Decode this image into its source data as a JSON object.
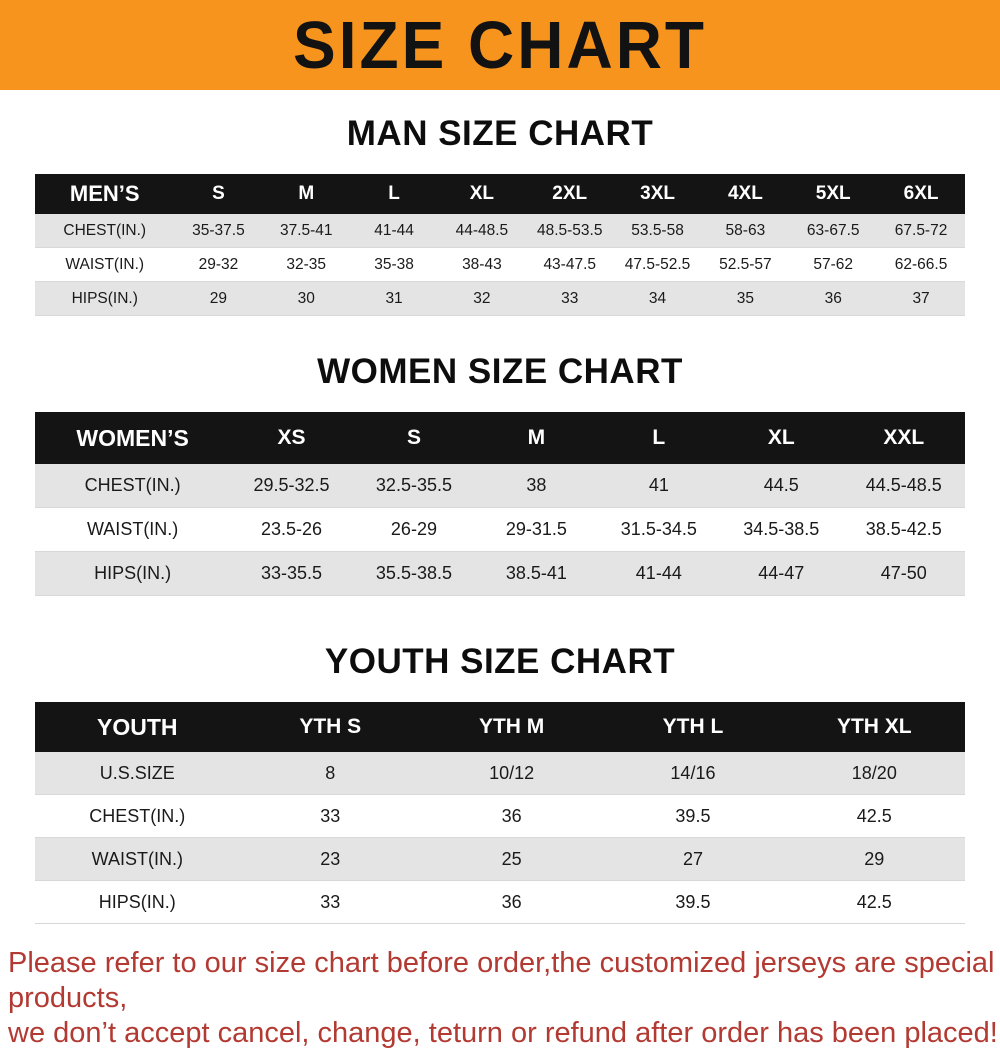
{
  "banner": {
    "title": "SIZE CHART",
    "bg_color": "#f7941e",
    "text_color": "#121212"
  },
  "sections": [
    {
      "heading": "MAN SIZE CHART",
      "table": {
        "header": [
          "MEN’S",
          "S",
          "M",
          "L",
          "XL",
          "2XL",
          "3XL",
          "4XL",
          "5XL",
          "6XL"
        ],
        "rows": [
          [
            "CHEST(IN.)",
            "35-37.5",
            "37.5-41",
            "41-44",
            "44-48.5",
            "48.5-53.5",
            "53.5-58",
            "58-63",
            "63-67.5",
            "67.5-72"
          ],
          [
            "WAIST(IN.)",
            "29-32",
            "32-35",
            "35-38",
            "38-43",
            "43-47.5",
            "47.5-52.5",
            "52.5-57",
            "57-62",
            "62-66.5"
          ],
          [
            "HIPS(IN.)",
            "29",
            "30",
            "31",
            "32",
            "33",
            "34",
            "35",
            "36",
            "37"
          ]
        ]
      }
    },
    {
      "heading": "WOMEN SIZE CHART",
      "table": {
        "header": [
          "WOMEN’S",
          "XS",
          "S",
          "M",
          "L",
          "XL",
          "XXL"
        ],
        "rows": [
          [
            "CHEST(IN.)",
            "29.5-32.5",
            "32.5-35.5",
            "38",
            "41",
            "44.5",
            "44.5-48.5"
          ],
          [
            "WAIST(IN.)",
            "23.5-26",
            "26-29",
            "29-31.5",
            "31.5-34.5",
            "34.5-38.5",
            "38.5-42.5"
          ],
          [
            "HIPS(IN.)",
            "33-35.5",
            "35.5-38.5",
            "38.5-41",
            "41-44",
            "44-47",
            "47-50"
          ]
        ]
      }
    },
    {
      "heading": "YOUTH SIZE CHART",
      "table": {
        "header": [
          "YOUTH",
          "YTH S",
          "YTH M",
          "YTH L",
          "YTH XL"
        ],
        "rows": [
          [
            "U.S.SIZE",
            "8",
            "10/12",
            "14/16",
            "18/20"
          ],
          [
            "CHEST(IN.)",
            "33",
            "36",
            "39.5",
            "42.5"
          ],
          [
            "WAIST(IN.)",
            "23",
            "25",
            "27",
            "29"
          ],
          [
            "HIPS(IN.)",
            "33",
            "36",
            "39.5",
            "42.5"
          ]
        ]
      }
    }
  ],
  "footer": {
    "line1": "Please refer to our size chart before order,the customized jerseys are special products,",
    "line2": "we don’t accept cancel, change, teturn or refund after order has been placed!",
    "text_color": "#b23a32"
  }
}
